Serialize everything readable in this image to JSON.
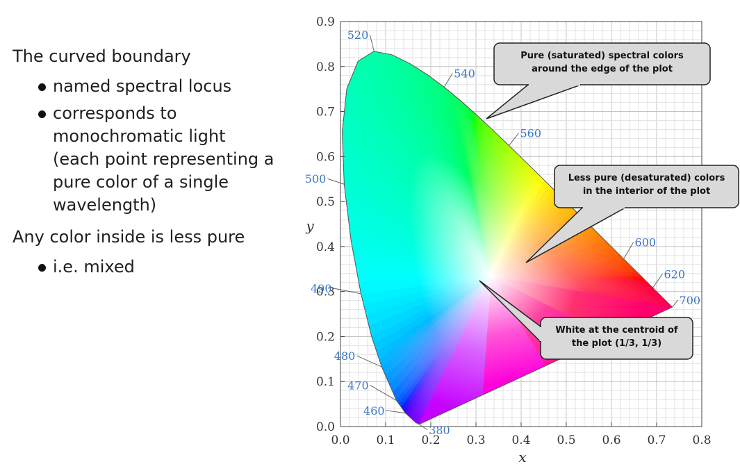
{
  "slide": {
    "heading": "The curved boundary",
    "bullets_a": [
      {
        "text": "named spectral locus"
      },
      {
        "text": "corresponds to\nmonochromatic light\n(each point representing a\npure color of a single\nwavelength)"
      }
    ],
    "heading2": "Any color inside is less pure",
    "bullets_b": [
      {
        "text": "i.e. mixed"
      }
    ]
  },
  "callouts": [
    {
      "lines": [
        "Pure (saturated) spectral colors",
        "around the edge of the plot"
      ]
    },
    {
      "lines": [
        "Less pure (desaturated) colors",
        "in the interior of the plot"
      ]
    },
    {
      "lines": [
        "White at the centroid of",
        "the plot (1/3, 1/3)"
      ]
    }
  ],
  "chart_data": {
    "type": "scatter",
    "title": "",
    "xlabel": "x",
    "ylabel": "y",
    "xlim": [
      0.0,
      0.8
    ],
    "ylim": [
      0.0,
      0.9
    ],
    "x_ticks": [
      "0.0",
      "0.1",
      "0.2",
      "0.3",
      "0.4",
      "0.5",
      "0.6",
      "0.7",
      "0.8"
    ],
    "y_ticks": [
      "0.0",
      "0.1",
      "0.2",
      "0.3",
      "0.4",
      "0.5",
      "0.6",
      "0.7",
      "0.8",
      "0.9"
    ],
    "grid": true,
    "locus": [
      [
        0.1741,
        0.005
      ],
      [
        0.1666,
        0.0089
      ],
      [
        0.144,
        0.0297
      ],
      [
        0.1241,
        0.0578
      ],
      [
        0.0913,
        0.1327
      ],
      [
        0.0687,
        0.2007
      ],
      [
        0.0454,
        0.295
      ],
      [
        0.0235,
        0.4127
      ],
      [
        0.0082,
        0.5384
      ],
      [
        0.0039,
        0.6548
      ],
      [
        0.0139,
        0.7502
      ],
      [
        0.0389,
        0.812
      ],
      [
        0.0743,
        0.8338
      ],
      [
        0.1142,
        0.8262
      ],
      [
        0.1547,
        0.8059
      ],
      [
        0.1929,
        0.7816
      ],
      [
        0.2296,
        0.7543
      ],
      [
        0.2658,
        0.7243
      ],
      [
        0.3016,
        0.6923
      ],
      [
        0.3373,
        0.6589
      ],
      [
        0.3731,
        0.6245
      ],
      [
        0.4087,
        0.5896
      ],
      [
        0.4441,
        0.5547
      ],
      [
        0.4788,
        0.5202
      ],
      [
        0.5125,
        0.4866
      ],
      [
        0.5448,
        0.4544
      ],
      [
        0.5752,
        0.4242
      ],
      [
        0.627,
        0.3725
      ],
      [
        0.6658,
        0.334
      ],
      [
        0.6915,
        0.3083
      ],
      [
        0.7079,
        0.292
      ],
      [
        0.7347,
        0.2653
      ]
    ],
    "wavelength_labels": [
      {
        "label": "380",
        "x": 0.1741,
        "y": 0.005
      },
      {
        "label": "460",
        "x": 0.144,
        "y": 0.0297
      },
      {
        "label": "470",
        "x": 0.1241,
        "y": 0.0578
      },
      {
        "label": "480",
        "x": 0.0913,
        "y": 0.1327
      },
      {
        "label": "490",
        "x": 0.0454,
        "y": 0.295
      },
      {
        "label": "500",
        "x": 0.0082,
        "y": 0.5384
      },
      {
        "label": "520",
        "x": 0.0743,
        "y": 0.8338
      },
      {
        "label": "540",
        "x": 0.2296,
        "y": 0.7543
      },
      {
        "label": "560",
        "x": 0.3731,
        "y": 0.6245
      },
      {
        "label": "600",
        "x": 0.627,
        "y": 0.3725
      },
      {
        "label": "620",
        "x": 0.6915,
        "y": 0.3083
      },
      {
        "label": "700",
        "x": 0.7347,
        "y": 0.2653
      }
    ],
    "white_point": {
      "x": 0.3333,
      "y": 0.3333
    },
    "colors": {
      "grid": "#cccccc",
      "wavelength_label": "#3a78c8",
      "callout_fill": "#d9d9d9"
    }
  }
}
